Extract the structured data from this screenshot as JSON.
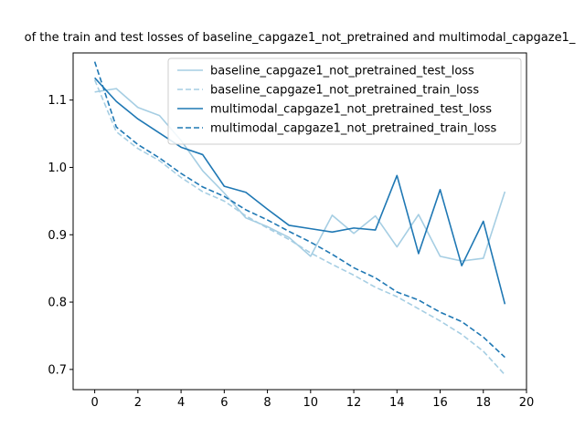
{
  "chart_data": {
    "type": "line",
    "title": "of the train and test losses of baseline_capgaze1_not_pretrained and multimodal_capgaze1_",
    "xlabel": "",
    "ylabel": "",
    "xlim": [
      -1,
      20
    ],
    "ylim": [
      0.67,
      1.17
    ],
    "xticks": [
      0,
      2,
      4,
      6,
      8,
      10,
      12,
      14,
      16,
      18,
      20
    ],
    "yticks": [
      0.7,
      0.8,
      0.9,
      1.0,
      1.1
    ],
    "ytick_labels": [
      "0.7",
      "0.8",
      "0.9",
      "1.0",
      "1.1"
    ],
    "grid": false,
    "legend_position": "upper right",
    "x": [
      0,
      1,
      2,
      3,
      4,
      5,
      6,
      7,
      8,
      9,
      10,
      11,
      12,
      13,
      14,
      15,
      16,
      17,
      18,
      19
    ],
    "series": [
      {
        "name": "baseline_capgaze1_not_pretrained_test_loss",
        "color": "#a6cee3",
        "dash": "solid",
        "values": [
          1.112,
          1.117,
          1.089,
          1.077,
          1.04,
          0.995,
          0.962,
          0.925,
          0.912,
          0.896,
          0.868,
          0.929,
          0.902,
          0.928,
          0.882,
          0.93,
          0.868,
          0.861,
          0.865,
          0.964
        ]
      },
      {
        "name": "baseline_capgaze1_not_pretrained_train_loss",
        "color": "#a6cee3",
        "dash": "dashed",
        "values": [
          1.13,
          1.053,
          1.028,
          1.01,
          0.985,
          0.964,
          0.95,
          0.928,
          0.91,
          0.893,
          0.873,
          0.856,
          0.84,
          0.822,
          0.808,
          0.79,
          0.772,
          0.752,
          0.727,
          0.692
        ]
      },
      {
        "name": "multimodal_capgaze1_not_pretrained_test_loss",
        "color": "#1f78b4",
        "dash": "solid",
        "values": [
          1.133,
          1.098,
          1.072,
          1.051,
          1.03,
          1.019,
          0.972,
          0.963,
          0.938,
          0.914,
          0.909,
          0.904,
          0.91,
          0.907,
          0.988,
          0.872,
          0.967,
          0.854,
          0.92,
          0.797
        ]
      },
      {
        "name": "multimodal_capgaze1_not_pretrained_train_loss",
        "color": "#1f78b4",
        "dash": "dashed",
        "values": [
          1.157,
          1.06,
          1.034,
          1.014,
          0.991,
          0.971,
          0.957,
          0.937,
          0.922,
          0.905,
          0.889,
          0.871,
          0.851,
          0.836,
          0.815,
          0.803,
          0.785,
          0.771,
          0.748,
          0.718
        ]
      }
    ]
  }
}
